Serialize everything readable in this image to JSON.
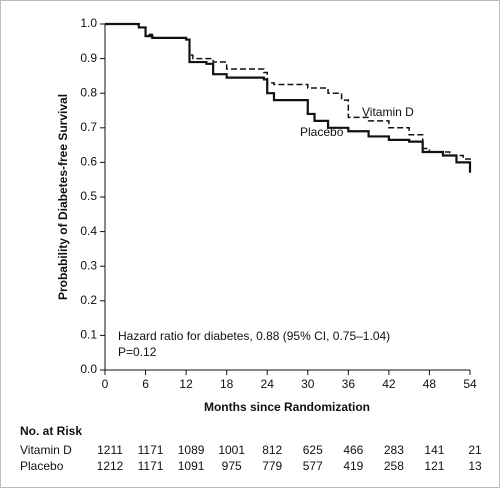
{
  "chart_data": {
    "type": "step",
    "xlabel": "Months since Randomization",
    "ylabel": "Probability of Diabetes-free Survival",
    "xlim": [
      0,
      54
    ],
    "ylim": [
      0,
      1
    ],
    "xticks": [
      0,
      6,
      12,
      18,
      24,
      30,
      36,
      42,
      48,
      54
    ],
    "yticks": [
      {
        "value": 0,
        "label": "0.0"
      },
      0.1,
      0.2,
      0.3,
      0.4,
      0.5,
      0.6,
      0.7,
      0.8,
      0.9,
      {
        "value": 1,
        "label": "1.0"
      }
    ],
    "annotations": [
      "Hazard ratio for diabetes, 0.88 (95% CI, 0.75–1.04)",
      "P=0.12"
    ],
    "series": [
      {
        "name": "Vitamin D",
        "color": "#111111",
        "style": "dashed",
        "x": [
          0,
          5,
          6,
          7,
          12,
          12.5,
          13,
          16,
          18,
          23.5,
          24,
          25,
          30,
          33,
          35,
          36,
          39,
          42,
          45,
          47,
          48,
          51,
          53,
          54
        ],
        "values": [
          1.0,
          0.99,
          0.97,
          0.96,
          0.955,
          0.91,
          0.9,
          0.89,
          0.87,
          0.86,
          0.83,
          0.825,
          0.815,
          0.8,
          0.78,
          0.73,
          0.72,
          0.7,
          0.68,
          0.64,
          0.63,
          0.62,
          0.61,
          0.6
        ]
      },
      {
        "name": "Placebo",
        "color": "#111111",
        "style": "solid",
        "x": [
          0,
          5,
          6,
          7,
          12,
          12.5,
          15,
          16,
          18,
          23.5,
          24,
          25,
          30,
          31,
          33,
          36,
          39,
          42,
          45,
          47,
          50,
          52,
          54
        ],
        "values": [
          1.0,
          0.99,
          0.965,
          0.96,
          0.955,
          0.89,
          0.885,
          0.855,
          0.845,
          0.84,
          0.8,
          0.78,
          0.74,
          0.72,
          0.7,
          0.69,
          0.675,
          0.665,
          0.66,
          0.63,
          0.62,
          0.6,
          0.57
        ]
      }
    ],
    "risk_table": {
      "title": "No. at Risk",
      "rows": [
        [
          1211,
          1171,
          1089,
          1001,
          812,
          625,
          466,
          283,
          141,
          21
        ],
        [
          1212,
          1171,
          1091,
          975,
          779,
          577,
          419,
          258,
          121,
          13
        ]
      ]
    }
  }
}
